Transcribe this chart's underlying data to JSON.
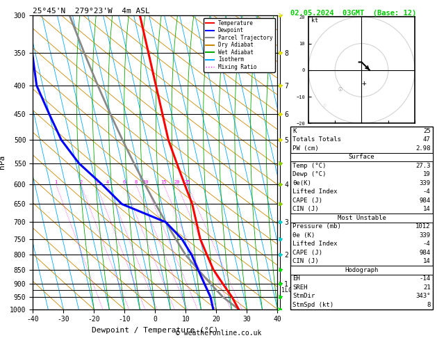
{
  "title_left": "25°45'N  279°23'W  4m ASL",
  "title_right": "02.05.2024  03GMT  (Base: 12)",
  "xlabel": "Dewpoint / Temperature (°C)",
  "ylabel_left": "hPa",
  "pressure_levels": [
    300,
    350,
    400,
    450,
    500,
    550,
    600,
    650,
    700,
    750,
    800,
    850,
    900,
    950,
    1000
  ],
  "temp_x": [
    17,
    17,
    17,
    17,
    17,
    18,
    19,
    20,
    20,
    20,
    21,
    22,
    24,
    26,
    27.3
  ],
  "temp_p": [
    300,
    350,
    400,
    450,
    500,
    550,
    600,
    650,
    700,
    750,
    800,
    850,
    900,
    950,
    1000
  ],
  "dewp_x": [
    -20,
    -21,
    -22,
    -20,
    -18,
    -14,
    -8,
    -3,
    10,
    14,
    16,
    17,
    18,
    19,
    19
  ],
  "dewp_p": [
    300,
    350,
    400,
    450,
    500,
    550,
    600,
    650,
    700,
    750,
    800,
    850,
    900,
    950,
    1000
  ],
  "parcel_x": [
    -6,
    -4,
    -2,
    0,
    2,
    4,
    6,
    8,
    10,
    12,
    14,
    17,
    20,
    23,
    27.3
  ],
  "parcel_p": [
    300,
    350,
    400,
    450,
    500,
    550,
    600,
    650,
    700,
    750,
    800,
    850,
    900,
    950,
    1000
  ],
  "xlim": [
    -40,
    40
  ],
  "pmin": 300,
  "pmax": 1000,
  "skew_factor": 22.0,
  "mixing_ratios": [
    1,
    2,
    3,
    4,
    6,
    8,
    10,
    15,
    20,
    25
  ],
  "km_ticks": [
    8,
    7,
    6,
    5,
    4,
    3,
    2,
    1
  ],
  "km_pressures": [
    350,
    400,
    450,
    500,
    600,
    700,
    800,
    900
  ],
  "lcl_pressure": 925,
  "temp_color": "#ff0000",
  "dewp_color": "#0000ff",
  "parcel_color": "#888888",
  "dry_adiabat_color": "#cc8800",
  "wet_adiabat_color": "#00aa00",
  "isotherm_color": "#00aaff",
  "mixing_ratio_color": "#ff00ff",
  "legend_items": [
    [
      "Temperature",
      "#ff0000",
      "solid"
    ],
    [
      "Dewpoint",
      "#0000ff",
      "solid"
    ],
    [
      "Parcel Trajectory",
      "#888888",
      "solid"
    ],
    [
      "Dry Adiabat",
      "#cc8800",
      "solid"
    ],
    [
      "Wet Adiabat",
      "#00aa00",
      "solid"
    ],
    [
      "Isotherm",
      "#00aaff",
      "solid"
    ],
    [
      "Mixing Ratio",
      "#ff00ff",
      "dotted"
    ]
  ],
  "stats_rows": [
    [
      "K",
      "25"
    ],
    [
      "Totals Totals",
      "47"
    ],
    [
      "PW (cm)",
      "2.98"
    ],
    [
      "__Surface__",
      ""
    ],
    [
      "Temp (°C)",
      "27.3"
    ],
    [
      "Dewp (°C)",
      "19"
    ],
    [
      "θe(K)",
      "339"
    ],
    [
      "Lifted Index",
      "-4"
    ],
    [
      "CAPE (J)",
      "984"
    ],
    [
      "CIN (J)",
      "14"
    ],
    [
      "__Most Unstable__",
      ""
    ],
    [
      "Pressure (mb)",
      "1012"
    ],
    [
      "θe (K)",
      "339"
    ],
    [
      "Lifted Index",
      "-4"
    ],
    [
      "CAPE (J)",
      "984"
    ],
    [
      "CIN (J)",
      "14"
    ],
    [
      "__Hodograph__",
      ""
    ],
    [
      "EH",
      "-14"
    ],
    [
      "SREH",
      "21"
    ],
    [
      "StmDir",
      "343°"
    ],
    [
      "StmSpd (kt)",
      "8"
    ]
  ],
  "hodo_u": [
    -1,
    0,
    1,
    2,
    3
  ],
  "hodo_v": [
    3,
    3,
    2,
    1,
    0
  ],
  "hodo_arrow_u": [
    3
  ],
  "hodo_arrow_v": [
    0
  ],
  "wind_barb_pressures": [
    1000,
    950,
    900,
    850,
    800,
    750,
    700,
    650,
    600,
    550,
    500,
    450,
    400,
    350,
    300
  ],
  "wind_barb_u": [
    2,
    2,
    3,
    4,
    5,
    6,
    7,
    8,
    9,
    10,
    11,
    12,
    14,
    15,
    16
  ],
  "wind_barb_v": [
    1,
    2,
    2,
    3,
    4,
    5,
    6,
    7,
    8,
    9,
    10,
    11,
    12,
    13,
    14
  ],
  "title_right_color": "#00cc00",
  "copyright": "© weatheronline.co.uk"
}
